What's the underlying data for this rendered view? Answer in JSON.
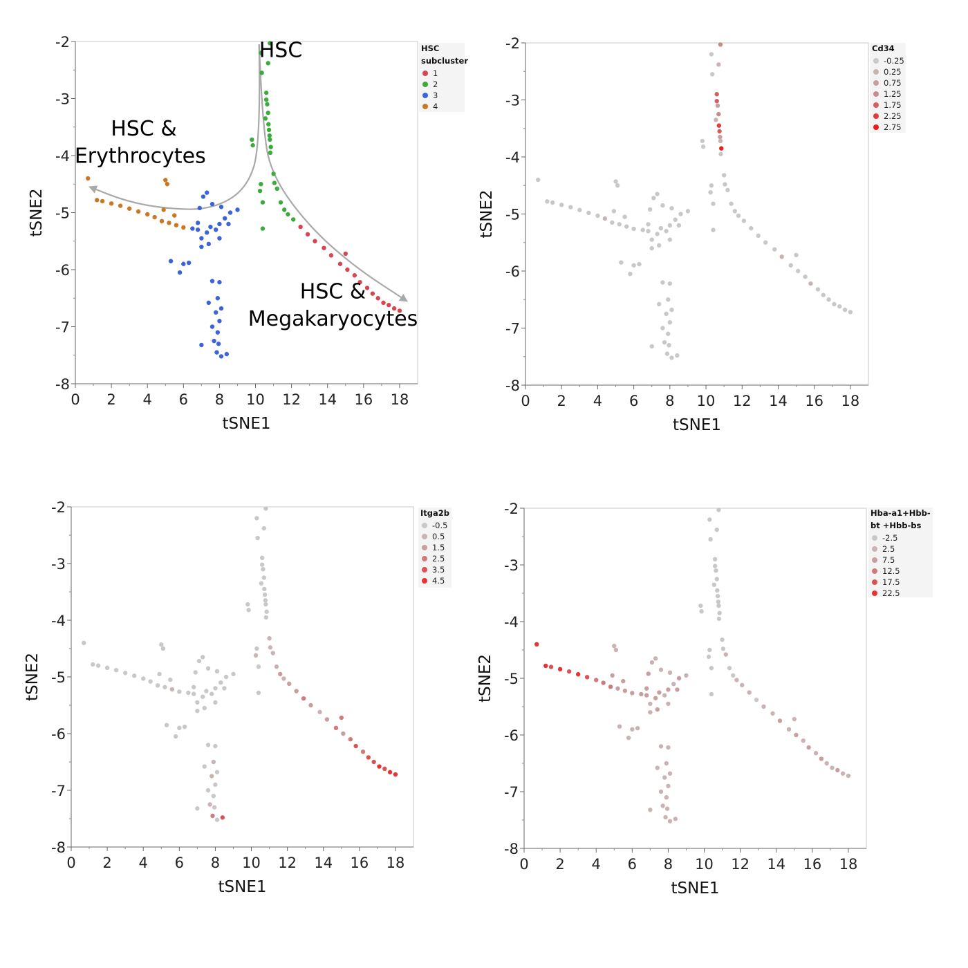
{
  "chart_data": [
    {
      "type": "scatter",
      "xlabel": "tSNE1",
      "ylabel": "tSNE2",
      "xlim": [
        0,
        19
      ],
      "ylim": [
        -8,
        -2
      ],
      "xticks": [
        "0",
        "2",
        "4",
        "6",
        "8",
        "10",
        "12",
        "14",
        "16",
        "18"
      ],
      "yticks": [
        "-2",
        "-3",
        "-4",
        "-5",
        "-6",
        "-7",
        "-8"
      ],
      "color_by": "cluster",
      "legend": {
        "title_lines": [
          "HSC",
          "subcluster"
        ],
        "placement": "right",
        "entries": [
          {
            "label": "1",
            "color": "#d94452"
          },
          {
            "label": "2",
            "color": "#3cab3c"
          },
          {
            "label": "3",
            "color": "#3b64d9"
          },
          {
            "label": "4",
            "color": "#cc7722"
          }
        ]
      },
      "annotations": [
        {
          "text": "HSC",
          "x": 11.4,
          "y": -2.27
        },
        {
          "text": "HSC &",
          "x": 3.8,
          "y": -3.65
        },
        {
          "text": "Erythrocytes",
          "x": 3.6,
          "y": -4.13
        },
        {
          "text": "HSC &",
          "x": 14.3,
          "y": -6.5
        },
        {
          "text": "Megakaryocytes",
          "x": 14.3,
          "y": -6.98
        }
      ],
      "arrows": [
        {
          "name": "erythrocyte-branch",
          "points": [
            [
              10.2,
              -2.05
            ],
            [
              10.3,
              -3.8
            ],
            [
              9.5,
              -4.6
            ],
            [
              7.5,
              -4.95
            ],
            [
              5,
              -4.93
            ],
            [
              2.8,
              -4.8
            ],
            [
              0.8,
              -4.55
            ]
          ]
        },
        {
          "name": "megakaryocyte-branch",
          "points": [
            [
              10.2,
              -2.05
            ],
            [
              10.4,
              -3.6
            ],
            [
              11,
              -4.4
            ],
            [
              13,
              -5.25
            ],
            [
              15.5,
              -5.95
            ],
            [
              18.4,
              -6.55
            ]
          ]
        }
      ]
    },
    {
      "type": "scatter",
      "xlabel": "tSNE1",
      "ylabel": "tSNE2",
      "xlim": [
        0,
        19
      ],
      "ylim": [
        -8,
        -2
      ],
      "xticks": [
        "0",
        "2",
        "4",
        "6",
        "8",
        "10",
        "12",
        "14",
        "16",
        "18"
      ],
      "yticks": [
        "-2",
        "-3",
        "-4",
        "-5",
        "-6",
        "-7",
        "-8"
      ],
      "color_by": "cd34",
      "legend": {
        "title_lines": [
          "Cd34"
        ],
        "placement": "right",
        "entries": [
          {
            "label": "-0.25",
            "color": "#c8c8c8"
          },
          {
            "label": "0.25",
            "color": "#c9b3b3"
          },
          {
            "label": "0.75",
            "color": "#c99e9e"
          },
          {
            "label": "1.25",
            "color": "#ca8a8a"
          },
          {
            "label": "1.75",
            "color": "#d46060"
          },
          {
            "label": "2.25",
            "color": "#dd3f3f"
          },
          {
            "label": "2.75",
            "color": "#ee1c1c"
          }
        ]
      }
    },
    {
      "type": "scatter",
      "xlabel": "tSNE1",
      "ylabel": "tSNE2",
      "xlim": [
        0,
        19
      ],
      "ylim": [
        -8,
        -2
      ],
      "xticks": [
        "0",
        "2",
        "4",
        "6",
        "8",
        "10",
        "12",
        "14",
        "16",
        "18"
      ],
      "yticks": [
        "-2",
        "-3",
        "-4",
        "-5",
        "-6",
        "-7",
        "-8"
      ],
      "color_by": "itga2b",
      "legend": {
        "title_lines": [
          "Itga2b"
        ],
        "placement": "right",
        "entries": [
          {
            "label": "-0.5",
            "color": "#c8c8c8"
          },
          {
            "label": "0.5",
            "color": "#c9b3b3"
          },
          {
            "label": "1.5",
            "color": "#c99e9e"
          },
          {
            "label": "2.5",
            "color": "#cf7b7b"
          },
          {
            "label": "3.5",
            "color": "#d85454"
          },
          {
            "label": "4.5",
            "color": "#e43434"
          }
        ]
      }
    },
    {
      "type": "scatter",
      "xlabel": "tSNE1",
      "ylabel": "tSNE2",
      "xlim": [
        0,
        19
      ],
      "ylim": [
        -8,
        -2
      ],
      "xticks": [
        "0",
        "2",
        "4",
        "6",
        "8",
        "10",
        "12",
        "14",
        "16",
        "18"
      ],
      "yticks": [
        "-2",
        "-3",
        "-4",
        "-5",
        "-6",
        "-7",
        "-8"
      ],
      "color_by": "hb",
      "legend": {
        "title_lines": [
          "Hba-a1+Hbb-",
          "bt +Hbb-bs"
        ],
        "placement": "right",
        "entries": [
          {
            "label": "-2.5",
            "color": "#c8c8c8"
          },
          {
            "label": "2.5",
            "color": "#c9b3b3"
          },
          {
            "label": "7.5",
            "color": "#c99e9e"
          },
          {
            "label": "12.5",
            "color": "#cf7b7b"
          },
          {
            "label": "17.5",
            "color": "#d85454"
          },
          {
            "label": "22.5",
            "color": "#e43434"
          }
        ]
      }
    }
  ],
  "cells": [
    {
      "x": 10.3,
      "y": -2.2,
      "cluster": 2,
      "cd34": 0,
      "itga2b": 0,
      "hb": 0
    },
    {
      "x": 10.8,
      "y": -2.03,
      "cluster": 2,
      "cd34": 3,
      "itga2b": 0,
      "hb": 0
    },
    {
      "x": 10.35,
      "y": -2.55,
      "cluster": 2,
      "cd34": 0,
      "itga2b": 0,
      "hb": 0
    },
    {
      "x": 10.7,
      "y": -2.38,
      "cluster": 2,
      "cd34": 1,
      "itga2b": 0,
      "hb": 0
    },
    {
      "x": 10.6,
      "y": -2.9,
      "cluster": 2,
      "cd34": 4,
      "itga2b": 0,
      "hb": 0
    },
    {
      "x": 10.6,
      "y": -3.02,
      "cluster": 2,
      "cd34": 4,
      "itga2b": 0,
      "hb": 0
    },
    {
      "x": 10.7,
      "y": -3.25,
      "cluster": 2,
      "cd34": 3,
      "itga2b": 0,
      "hb": 0
    },
    {
      "x": 10.72,
      "y": -3.45,
      "cluster": 2,
      "cd34": 5,
      "itga2b": 0,
      "hb": 0
    },
    {
      "x": 10.75,
      "y": -3.55,
      "cluster": 2,
      "cd34": 4,
      "itga2b": 0,
      "hb": 0
    },
    {
      "x": 10.78,
      "y": -3.65,
      "cluster": 2,
      "cd34": 2,
      "itga2b": 0,
      "hb": 0
    },
    {
      "x": 10.8,
      "y": -3.72,
      "cluster": 2,
      "cd34": 1,
      "itga2b": 0,
      "hb": 0
    },
    {
      "x": 10.85,
      "y": -3.85,
      "cluster": 2,
      "cd34": 6,
      "itga2b": 0,
      "hb": 0
    },
    {
      "x": 10.82,
      "y": -3.95,
      "cluster": 2,
      "cd34": 0,
      "itga2b": 0,
      "hb": 0
    },
    {
      "x": 10.55,
      "y": -3.35,
      "cluster": 2,
      "cd34": 1,
      "itga2b": 0,
      "hb": 0
    },
    {
      "x": 10.65,
      "y": -3.1,
      "cluster": 2,
      "cd34": 2,
      "itga2b": 0,
      "hb": 0
    },
    {
      "x": 9.8,
      "y": -3.72,
      "cluster": 2,
      "cd34": 0,
      "itga2b": 0,
      "hb": 0
    },
    {
      "x": 9.85,
      "y": -3.82,
      "cluster": 2,
      "cd34": 0,
      "itga2b": 0,
      "hb": 0
    },
    {
      "x": 10.3,
      "y": -4.5,
      "cluster": 2,
      "cd34": 0,
      "itga2b": 0,
      "hb": 0
    },
    {
      "x": 10.25,
      "y": -4.62,
      "cluster": 2,
      "cd34": 0,
      "itga2b": 1,
      "hb": 0
    },
    {
      "x": 10.4,
      "y": -4.82,
      "cluster": 2,
      "cd34": 0,
      "itga2b": 0,
      "hb": 0
    },
    {
      "x": 10.4,
      "y": -5.28,
      "cluster": 2,
      "cd34": 0,
      "itga2b": 0,
      "hb": 0
    },
    {
      "x": 11.0,
      "y": -4.32,
      "cluster": 2,
      "cd34": 0,
      "itga2b": 1,
      "hb": 0
    },
    {
      "x": 11.05,
      "y": -4.48,
      "cluster": 2,
      "cd34": 0,
      "itga2b": 1,
      "hb": 0
    },
    {
      "x": 11.2,
      "y": -4.58,
      "cluster": 2,
      "cd34": 0,
      "itga2b": 1,
      "hb": 1
    },
    {
      "x": 11.4,
      "y": -4.82,
      "cluster": 2,
      "cd34": 0,
      "itga2b": 1,
      "hb": 0
    },
    {
      "x": 11.6,
      "y": -4.95,
      "cluster": 2,
      "cd34": 0,
      "itga2b": 2,
      "hb": 0
    },
    {
      "x": 11.8,
      "y": -5.03,
      "cluster": 2,
      "cd34": 0,
      "itga2b": 1,
      "hb": 1
    },
    {
      "x": 12.1,
      "y": -5.12,
      "cluster": 2,
      "cd34": 0,
      "itga2b": 2,
      "hb": 1
    },
    {
      "x": 12.5,
      "y": -5.25,
      "cluster": 1,
      "cd34": 0,
      "itga2b": 2,
      "hb": 1
    },
    {
      "x": 12.9,
      "y": -5.38,
      "cluster": 1,
      "cd34": 0,
      "itga2b": 3,
      "hb": 0
    },
    {
      "x": 13.3,
      "y": -5.5,
      "cluster": 1,
      "cd34": 0,
      "itga2b": 2,
      "hb": 1
    },
    {
      "x": 13.8,
      "y": -5.62,
      "cluster": 1,
      "cd34": 0,
      "itga2b": 1,
      "hb": 1
    },
    {
      "x": 14.2,
      "y": -5.75,
      "cluster": 1,
      "cd34": 1,
      "itga2b": 2,
      "hb": 2
    },
    {
      "x": 14.7,
      "y": -5.9,
      "cluster": 1,
      "cd34": 0,
      "itga2b": 3,
      "hb": 1
    },
    {
      "x": 15.0,
      "y": -5.72,
      "cluster": 1,
      "cd34": 0,
      "itga2b": 3,
      "hb": 1
    },
    {
      "x": 15.1,
      "y": -6.0,
      "cluster": 1,
      "cd34": 0,
      "itga2b": 2,
      "hb": 2
    },
    {
      "x": 15.5,
      "y": -6.1,
      "cluster": 1,
      "cd34": 0,
      "itga2b": 3,
      "hb": 1
    },
    {
      "x": 15.8,
      "y": -6.22,
      "cluster": 1,
      "cd34": 1,
      "itga2b": 4,
      "hb": 2
    },
    {
      "x": 16.2,
      "y": -6.32,
      "cluster": 1,
      "cd34": 0,
      "itga2b": 3,
      "hb": 1
    },
    {
      "x": 16.5,
      "y": -6.42,
      "cluster": 1,
      "cd34": 0,
      "itga2b": 4,
      "hb": 2
    },
    {
      "x": 16.8,
      "y": -6.5,
      "cluster": 1,
      "cd34": 0,
      "itga2b": 4,
      "hb": 1
    },
    {
      "x": 17.1,
      "y": -6.58,
      "cluster": 1,
      "cd34": 0,
      "itga2b": 5,
      "hb": 1
    },
    {
      "x": 17.4,
      "y": -6.62,
      "cluster": 1,
      "cd34": 0,
      "itga2b": 4,
      "hb": 2
    },
    {
      "x": 17.7,
      "y": -6.68,
      "cluster": 1,
      "cd34": 0,
      "itga2b": 5,
      "hb": 1
    },
    {
      "x": 18.0,
      "y": -6.72,
      "cluster": 1,
      "cd34": 0,
      "itga2b": 5,
      "hb": 1
    },
    {
      "x": 0.7,
      "y": -4.4,
      "cluster": 4,
      "cd34": 0,
      "itga2b": 0,
      "hb": 5
    },
    {
      "x": 1.2,
      "y": -4.78,
      "cluster": 4,
      "cd34": 0,
      "itga2b": 0,
      "hb": 5
    },
    {
      "x": 1.5,
      "y": -4.8,
      "cluster": 4,
      "cd34": 0,
      "itga2b": 0,
      "hb": 4
    },
    {
      "x": 2.0,
      "y": -4.84,
      "cluster": 4,
      "cd34": 0,
      "itga2b": 0,
      "hb": 5
    },
    {
      "x": 2.5,
      "y": -4.88,
      "cluster": 4,
      "cd34": 0,
      "itga2b": 0,
      "hb": 4
    },
    {
      "x": 3.0,
      "y": -4.93,
      "cluster": 4,
      "cd34": 0,
      "itga2b": 0,
      "hb": 5
    },
    {
      "x": 3.5,
      "y": -4.98,
      "cluster": 4,
      "cd34": 0,
      "itga2b": 0,
      "hb": 4
    },
    {
      "x": 4.0,
      "y": -5.03,
      "cluster": 4,
      "cd34": 0,
      "itga2b": 0,
      "hb": 3
    },
    {
      "x": 4.4,
      "y": -5.08,
      "cluster": 4,
      "cd34": 1,
      "itga2b": 0,
      "hb": 3
    },
    {
      "x": 4.8,
      "y": -5.15,
      "cluster": 4,
      "cd34": 0,
      "itga2b": 0,
      "hb": 3
    },
    {
      "x": 5.2,
      "y": -5.18,
      "cluster": 4,
      "cd34": 0,
      "itga2b": 0,
      "hb": 2
    },
    {
      "x": 5.6,
      "y": -5.22,
      "cluster": 4,
      "cd34": 0,
      "itga2b": 1,
      "hb": 2
    },
    {
      "x": 6.0,
      "y": -5.26,
      "cluster": 4,
      "cd34": 0,
      "itga2b": 0,
      "hb": 2
    },
    {
      "x": 5.0,
      "y": -4.43,
      "cluster": 4,
      "cd34": 0,
      "itga2b": 0,
      "hb": 1
    },
    {
      "x": 5.1,
      "y": -4.5,
      "cluster": 4,
      "cd34": 0,
      "itga2b": 0,
      "hb": 1
    },
    {
      "x": 4.9,
      "y": -4.95,
      "cluster": 4,
      "cd34": 0,
      "itga2b": 0,
      "hb": 2
    },
    {
      "x": 5.5,
      "y": -5.05,
      "cluster": 4,
      "cd34": 0,
      "itga2b": 0,
      "hb": 2
    },
    {
      "x": 6.5,
      "y": -5.28,
      "cluster": 3,
      "cd34": 0,
      "itga2b": 0,
      "hb": 2
    },
    {
      "x": 6.8,
      "y": -5.3,
      "cluster": 3,
      "cd34": 0,
      "itga2b": 0,
      "hb": 2
    },
    {
      "x": 7.0,
      "y": -5.45,
      "cluster": 3,
      "cd34": 0,
      "itga2b": 0,
      "hb": 1
    },
    {
      "x": 7.3,
      "y": -5.35,
      "cluster": 3,
      "cd34": 0,
      "itga2b": 0,
      "hb": 2
    },
    {
      "x": 7.5,
      "y": -5.25,
      "cluster": 3,
      "cd34": 0,
      "itga2b": 0,
      "hb": 2
    },
    {
      "x": 7.8,
      "y": -5.3,
      "cluster": 3,
      "cd34": 0,
      "itga2b": 0,
      "hb": 1
    },
    {
      "x": 8.0,
      "y": -5.2,
      "cluster": 3,
      "cd34": 0,
      "itga2b": 0,
      "hb": 2
    },
    {
      "x": 8.3,
      "y": -5.1,
      "cluster": 3,
      "cd34": 0,
      "itga2b": 0,
      "hb": 1
    },
    {
      "x": 8.6,
      "y": -5.0,
      "cluster": 3,
      "cd34": 0,
      "itga2b": 0,
      "hb": 2
    },
    {
      "x": 9.0,
      "y": -4.95,
      "cluster": 3,
      "cd34": 0,
      "itga2b": 0,
      "hb": 1
    },
    {
      "x": 7.3,
      "y": -4.65,
      "cluster": 3,
      "cd34": 0,
      "itga2b": 0,
      "hb": 1
    },
    {
      "x": 7.1,
      "y": -4.72,
      "cluster": 3,
      "cd34": 0,
      "itga2b": 0,
      "hb": 1
    },
    {
      "x": 6.9,
      "y": -4.92,
      "cluster": 3,
      "cd34": 0,
      "itga2b": 0,
      "hb": 2
    },
    {
      "x": 7.6,
      "y": -4.85,
      "cluster": 3,
      "cd34": 0,
      "itga2b": 0,
      "hb": 1
    },
    {
      "x": 8.1,
      "y": -4.9,
      "cluster": 3,
      "cd34": 0,
      "itga2b": 0,
      "hb": 1
    },
    {
      "x": 8.5,
      "y": -5.2,
      "cluster": 3,
      "cd34": 0,
      "itga2b": 0,
      "hb": 2
    },
    {
      "x": 7.0,
      "y": -5.6,
      "cluster": 3,
      "cd34": 0,
      "itga2b": 0,
      "hb": 1
    },
    {
      "x": 7.4,
      "y": -5.55,
      "cluster": 3,
      "cd34": 0,
      "itga2b": 0,
      "hb": 2
    },
    {
      "x": 8.0,
      "y": -5.45,
      "cluster": 3,
      "cd34": 0,
      "itga2b": 0,
      "hb": 1
    },
    {
      "x": 6.8,
      "y": -5.18,
      "cluster": 3,
      "cd34": 0,
      "itga2b": 0,
      "hb": 2
    },
    {
      "x": 5.3,
      "y": -5.85,
      "cluster": 3,
      "cd34": 0,
      "itga2b": 0,
      "hb": 1
    },
    {
      "x": 5.8,
      "y": -6.05,
      "cluster": 3,
      "cd34": 0,
      "itga2b": 0,
      "hb": 1
    },
    {
      "x": 6.0,
      "y": -5.9,
      "cluster": 3,
      "cd34": 0,
      "itga2b": 0,
      "hb": 1
    },
    {
      "x": 6.3,
      "y": -5.88,
      "cluster": 3,
      "cd34": 0,
      "itga2b": 0,
      "hb": 1
    },
    {
      "x": 7.6,
      "y": -6.2,
      "cluster": 3,
      "cd34": 0,
      "itga2b": 0,
      "hb": 1
    },
    {
      "x": 8.0,
      "y": -6.22,
      "cluster": 3,
      "cd34": 0,
      "itga2b": 0,
      "hb": 1
    },
    {
      "x": 7.9,
      "y": -6.5,
      "cluster": 3,
      "cd34": 0,
      "itga2b": 1,
      "hb": 1
    },
    {
      "x": 7.4,
      "y": -6.58,
      "cluster": 3,
      "cd34": 0,
      "itga2b": 0,
      "hb": 1
    },
    {
      "x": 8.1,
      "y": -6.68,
      "cluster": 3,
      "cd34": 0,
      "itga2b": 0,
      "hb": 1
    },
    {
      "x": 7.8,
      "y": -6.75,
      "cluster": 3,
      "cd34": 0,
      "itga2b": 1,
      "hb": 1
    },
    {
      "x": 8.0,
      "y": -6.9,
      "cluster": 3,
      "cd34": 0,
      "itga2b": 0,
      "hb": 1
    },
    {
      "x": 7.6,
      "y": -7.0,
      "cluster": 3,
      "cd34": 0,
      "itga2b": 0,
      "hb": 1
    },
    {
      "x": 7.9,
      "y": -7.1,
      "cluster": 3,
      "cd34": 0,
      "itga2b": 0,
      "hb": 1
    },
    {
      "x": 7.7,
      "y": -7.25,
      "cluster": 3,
      "cd34": 0,
      "itga2b": 1,
      "hb": 1
    },
    {
      "x": 7.95,
      "y": -7.3,
      "cluster": 3,
      "cd34": 0,
      "itga2b": 0,
      "hb": 1
    },
    {
      "x": 7.0,
      "y": -7.32,
      "cluster": 3,
      "cd34": 0,
      "itga2b": 0,
      "hb": 1
    },
    {
      "x": 7.85,
      "y": -7.45,
      "cluster": 3,
      "cd34": 0,
      "itga2b": 3,
      "hb": 1
    },
    {
      "x": 8.1,
      "y": -7.52,
      "cluster": 3,
      "cd34": 0,
      "itga2b": 0,
      "hb": 1
    },
    {
      "x": 8.4,
      "y": -7.48,
      "cluster": 3,
      "cd34": 0,
      "itga2b": 4,
      "hb": 1
    }
  ]
}
